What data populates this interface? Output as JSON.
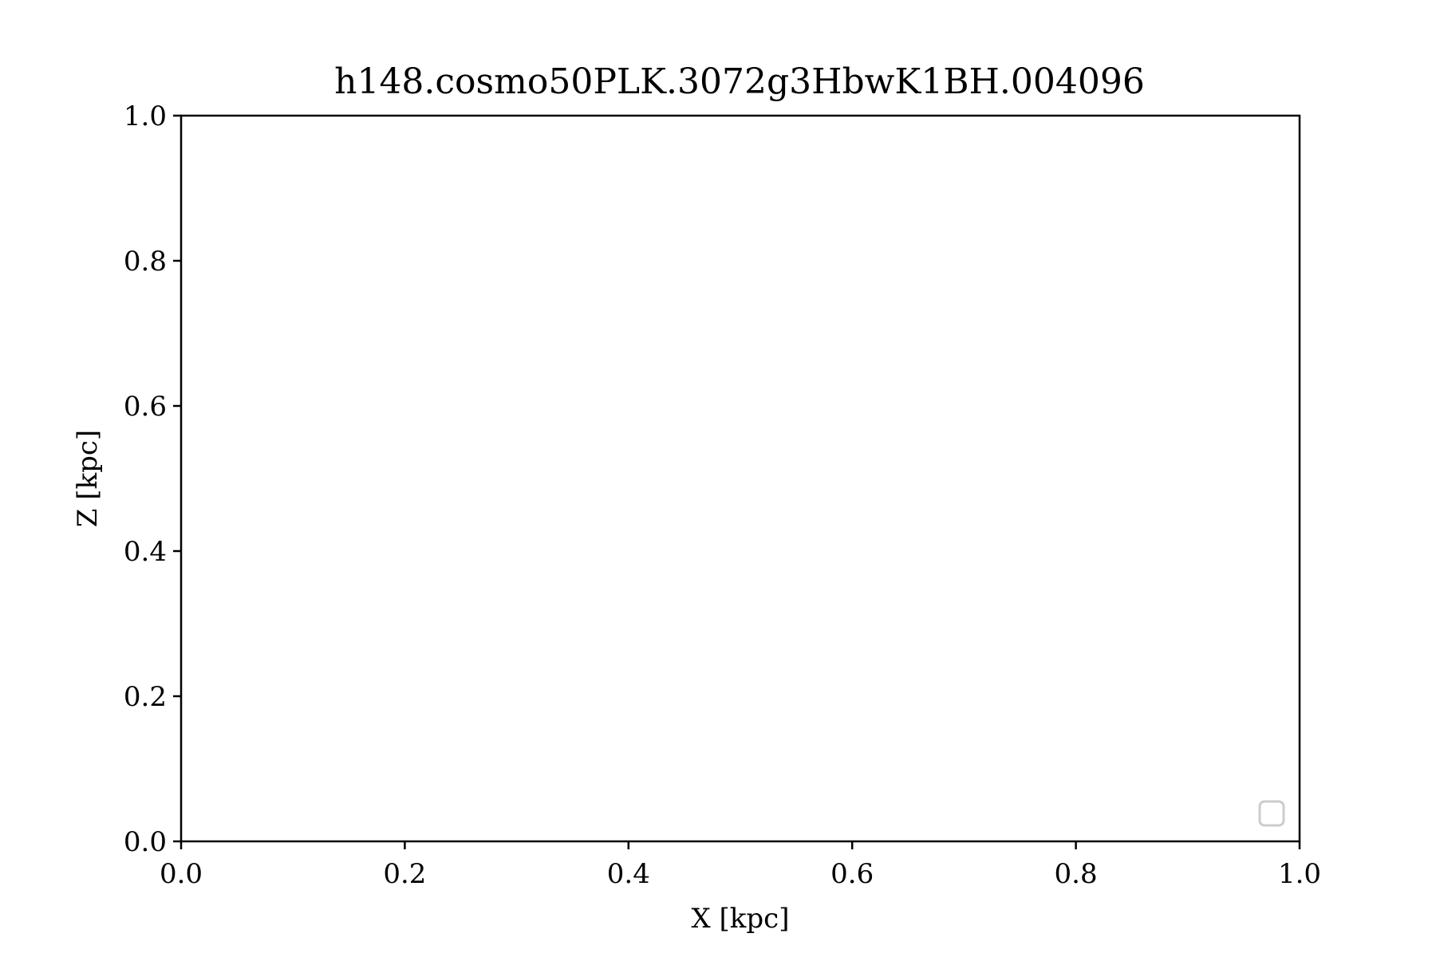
{
  "chart_data": {
    "type": "scatter",
    "title": "h148.cosmo50PLK.3072g3HbwK1BH.004096",
    "xlabel": "X [kpc]",
    "ylabel": "Z [kpc]",
    "xlim": [
      0.0,
      1.0
    ],
    "ylim": [
      0.0,
      1.0
    ],
    "x_ticks": [
      "0.0",
      "0.2",
      "0.4",
      "0.6",
      "0.8",
      "1.0"
    ],
    "y_ticks": [
      "0.0",
      "0.2",
      "0.4",
      "0.6",
      "0.8",
      "1.0"
    ],
    "series": [],
    "grid": false,
    "legend": {
      "location": "lower right",
      "entries": []
    },
    "colors": {
      "axes": "#000000",
      "legend_border": "#cccccc",
      "background": "#ffffff"
    }
  }
}
